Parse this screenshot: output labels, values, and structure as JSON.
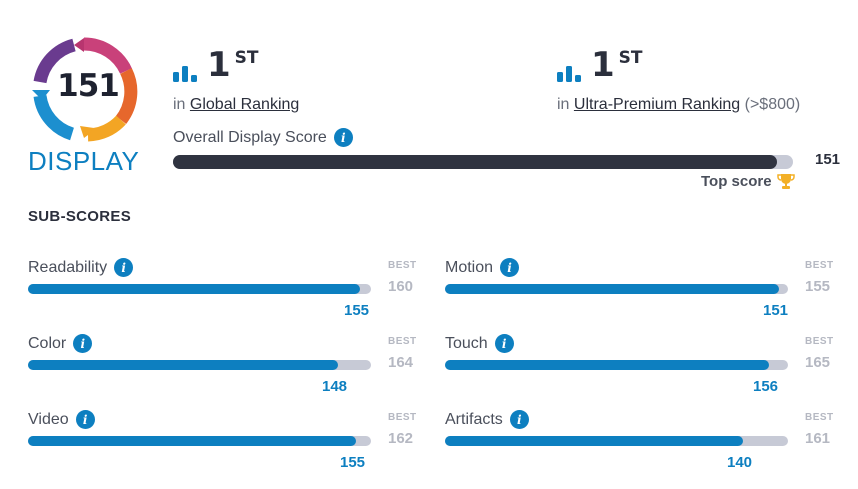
{
  "logo": {
    "score": "151",
    "label": "DISPLAY"
  },
  "rankings": [
    {
      "rank": "1",
      "suffix": "ST",
      "prefix": "in",
      "link": "Global Ranking",
      "extra": ""
    },
    {
      "rank": "1",
      "suffix": "ST",
      "prefix": "in",
      "link": "Ultra-Premium Ranking",
      "extra": "(>$800)"
    }
  ],
  "overall": {
    "label": "Overall Display Score",
    "score": "151",
    "max": 155,
    "value": 151,
    "top_label": "Top score"
  },
  "subscores": {
    "title": "SUB-SCORES",
    "best_label": "BEST",
    "items": [
      {
        "label": "Readability",
        "score": "155",
        "best": "160",
        "value": 155,
        "max": 160
      },
      {
        "label": "Color",
        "score": "148",
        "best": "164",
        "value": 148,
        "max": 164
      },
      {
        "label": "Video",
        "score": "155",
        "best": "162",
        "value": 155,
        "max": 162
      },
      {
        "label": "Motion",
        "score": "151",
        "best": "155",
        "value": 151,
        "max": 155
      },
      {
        "label": "Touch",
        "score": "156",
        "best": "165",
        "value": 156,
        "max": 165
      },
      {
        "label": "Artifacts",
        "score": "140",
        "best": "161",
        "value": 140,
        "max": 161
      }
    ]
  },
  "colors": {
    "accent": "#0d7fc0",
    "dark": "#2f3340",
    "track": "#c7cad6",
    "best": "#b5b8c2",
    "trophy": "#f3b027"
  },
  "icons": {
    "info": "info-icon",
    "rank": "bar-chart-icon",
    "trophy": "trophy-icon"
  }
}
